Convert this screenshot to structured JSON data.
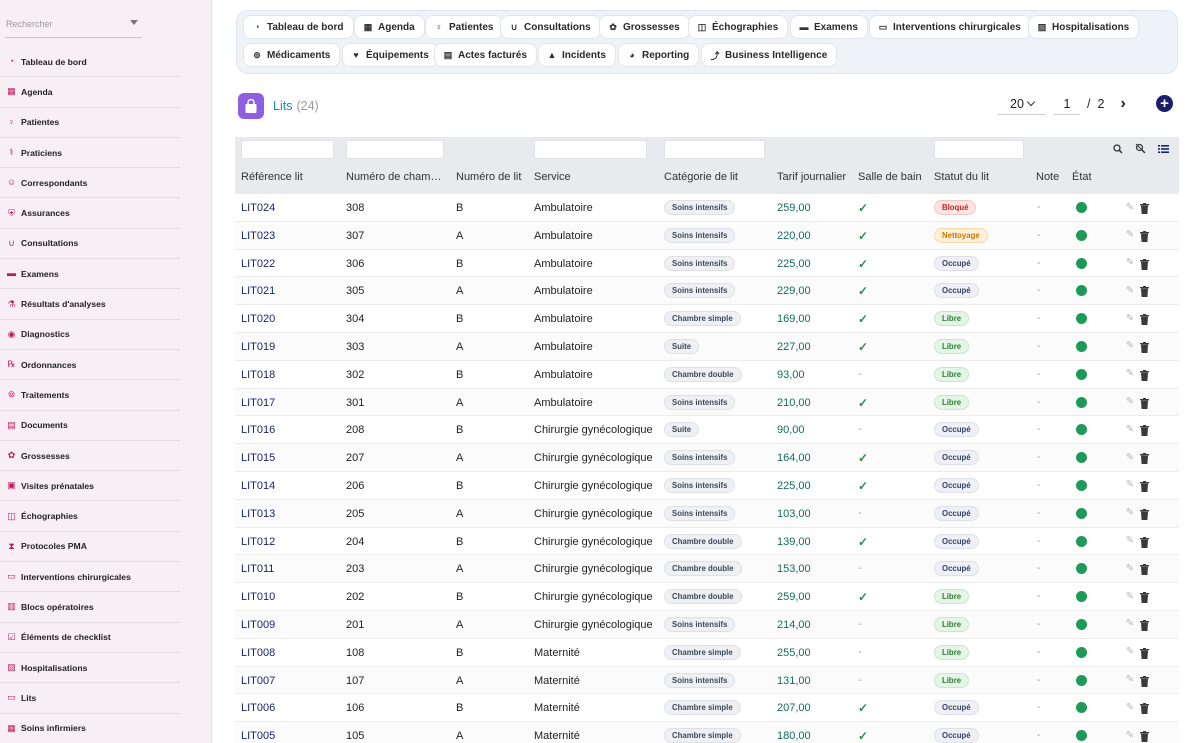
{
  "sidebar": {
    "search_placeholder": "Rechercher",
    "items": [
      {
        "label": "Tableau de bord",
        "icon": "dashboard-icon",
        "glyph": "◔"
      },
      {
        "label": "Agenda",
        "icon": "calendar-icon",
        "glyph": "▦"
      },
      {
        "label": "Patientes",
        "icon": "female-icon",
        "glyph": "♀"
      },
      {
        "label": "Praticiens",
        "icon": "doctor-icon",
        "glyph": "⚕"
      },
      {
        "label": "Correspondants",
        "icon": "contacts-icon",
        "glyph": "☺"
      },
      {
        "label": "Assurances",
        "icon": "shield-icon",
        "glyph": "⛨"
      },
      {
        "label": "Consultations",
        "icon": "stethoscope-icon",
        "glyph": "∪"
      },
      {
        "label": "Examens",
        "icon": "exam-icon",
        "glyph": "▬"
      },
      {
        "label": "Résultats d'analyses",
        "icon": "flask-icon",
        "glyph": "⚗"
      },
      {
        "label": "Diagnostics",
        "icon": "diagnosis-icon",
        "glyph": "◉"
      },
      {
        "label": "Ordonnances",
        "icon": "prescription-icon",
        "glyph": "℞"
      },
      {
        "label": "Traitements",
        "icon": "pills-icon",
        "glyph": "⊚"
      },
      {
        "label": "Documents",
        "icon": "document-icon",
        "glyph": "▤"
      },
      {
        "label": "Grossesses",
        "icon": "pregnancy-icon",
        "glyph": "✿"
      },
      {
        "label": "Visites prénatales",
        "icon": "baby-icon",
        "glyph": "▣"
      },
      {
        "label": "Échographies",
        "icon": "ultrasound-icon",
        "glyph": "◫"
      },
      {
        "label": "Protocoles PMA",
        "icon": "dna-icon",
        "glyph": "⧗"
      },
      {
        "label": "Interventions chirurgicales",
        "icon": "surgery-bed-icon",
        "glyph": "▭"
      },
      {
        "label": "Blocs opératoires",
        "icon": "operating-room-icon",
        "glyph": "▥"
      },
      {
        "label": "Éléments de checklist",
        "icon": "checklist-icon",
        "glyph": "☑"
      },
      {
        "label": "Hospitalisations",
        "icon": "hospital-icon",
        "glyph": "▨"
      },
      {
        "label": "Lits",
        "icon": "bed-icon",
        "glyph": "▭"
      },
      {
        "label": "Soins infirmiers",
        "icon": "nurse-icon",
        "glyph": "▦"
      }
    ]
  },
  "tabs": [
    {
      "label": "Tableau de bord",
      "icon": "dashboard-icon",
      "glyph": "◔"
    },
    {
      "label": "Agenda",
      "icon": "calendar-icon",
      "glyph": "▦"
    },
    {
      "label": "Patientes",
      "icon": "female-icon",
      "glyph": "♀"
    },
    {
      "label": "Consultations",
      "icon": "stethoscope-icon",
      "glyph": "∪"
    },
    {
      "label": "Grossesses",
      "icon": "pregnancy-icon",
      "glyph": "✿"
    },
    {
      "label": "Échographies",
      "icon": "ultrasound-icon",
      "glyph": "◫"
    },
    {
      "label": "Examens",
      "icon": "exam-icon",
      "glyph": "▬"
    },
    {
      "label": "Interventions chirurgicales",
      "icon": "surgery-bed-icon",
      "glyph": "▭"
    },
    {
      "label": "Hospitalisations",
      "icon": "hospital-icon",
      "glyph": "▨"
    },
    {
      "label": "Médicaments",
      "icon": "pills-icon",
      "glyph": "⊚"
    },
    {
      "label": "Équipements",
      "icon": "equipment-icon",
      "glyph": "♥"
    },
    {
      "label": "Actes facturés",
      "icon": "invoice-icon",
      "glyph": "▤"
    },
    {
      "label": "Incidents",
      "icon": "warning-icon",
      "glyph": "▲"
    },
    {
      "label": "Reporting",
      "icon": "pie-chart-icon",
      "glyph": "◕"
    },
    {
      "label": "Business Intelligence",
      "icon": "line-chart-icon",
      "glyph": "⤴"
    }
  ],
  "header": {
    "title": "Lits",
    "count": "(24)",
    "icon": "shopping-bag-icon"
  },
  "pager": {
    "page_size": "20",
    "current_page": "1",
    "separator": "/",
    "total_pages": "2"
  },
  "table": {
    "columns": [
      "Référence lit",
      "Numéro de cham…",
      "Numéro de lit",
      "Service",
      "Catégorie de lit",
      "Tarif journalier",
      "Salle de bain",
      "Statut du lit",
      "Note",
      "État"
    ],
    "rows": [
      {
        "ref": "LIT024",
        "chambre": "308",
        "lit": "B",
        "service": "Ambulatoire",
        "categorie": "Soins intensifs",
        "tarif": "259,00",
        "bain": true,
        "statut": "Bloqué",
        "note": "-"
      },
      {
        "ref": "LIT023",
        "chambre": "307",
        "lit": "A",
        "service": "Ambulatoire",
        "categorie": "Soins intensifs",
        "tarif": "220,00",
        "bain": true,
        "statut": "Nettoyage",
        "note": "-"
      },
      {
        "ref": "LIT022",
        "chambre": "306",
        "lit": "B",
        "service": "Ambulatoire",
        "categorie": "Soins intensifs",
        "tarif": "225,00",
        "bain": true,
        "statut": "Occupé",
        "note": "-"
      },
      {
        "ref": "LIT021",
        "chambre": "305",
        "lit": "A",
        "service": "Ambulatoire",
        "categorie": "Soins intensifs",
        "tarif": "229,00",
        "bain": true,
        "statut": "Occupé",
        "note": "-"
      },
      {
        "ref": "LIT020",
        "chambre": "304",
        "lit": "B",
        "service": "Ambulatoire",
        "categorie": "Chambre simple",
        "tarif": "169,00",
        "bain": true,
        "statut": "Libre",
        "note": "-"
      },
      {
        "ref": "LIT019",
        "chambre": "303",
        "lit": "A",
        "service": "Ambulatoire",
        "categorie": "Suite",
        "tarif": "227,00",
        "bain": true,
        "statut": "Libre",
        "note": "-"
      },
      {
        "ref": "LIT018",
        "chambre": "302",
        "lit": "B",
        "service": "Ambulatoire",
        "categorie": "Chambre double",
        "tarif": "93,00",
        "bain": false,
        "statut": "Libre",
        "note": "-"
      },
      {
        "ref": "LIT017",
        "chambre": "301",
        "lit": "A",
        "service": "Ambulatoire",
        "categorie": "Soins intensifs",
        "tarif": "210,00",
        "bain": true,
        "statut": "Libre",
        "note": "-"
      },
      {
        "ref": "LIT016",
        "chambre": "208",
        "lit": "B",
        "service": "Chirurgie gynécologique",
        "categorie": "Suite",
        "tarif": "90,00",
        "bain": false,
        "statut": "Occupé",
        "note": "-"
      },
      {
        "ref": "LIT015",
        "chambre": "207",
        "lit": "A",
        "service": "Chirurgie gynécologique",
        "categorie": "Soins intensifs",
        "tarif": "164,00",
        "bain": true,
        "statut": "Occupé",
        "note": "-"
      },
      {
        "ref": "LIT014",
        "chambre": "206",
        "lit": "B",
        "service": "Chirurgie gynécologique",
        "categorie": "Soins intensifs",
        "tarif": "225,00",
        "bain": true,
        "statut": "Occupé",
        "note": "-"
      },
      {
        "ref": "LIT013",
        "chambre": "205",
        "lit": "A",
        "service": "Chirurgie gynécologique",
        "categorie": "Soins intensifs",
        "tarif": "103,00",
        "bain": false,
        "statut": "Occupé",
        "note": "-"
      },
      {
        "ref": "LIT012",
        "chambre": "204",
        "lit": "B",
        "service": "Chirurgie gynécologique",
        "categorie": "Chambre double",
        "tarif": "139,00",
        "bain": true,
        "statut": "Occupé",
        "note": "-"
      },
      {
        "ref": "LIT011",
        "chambre": "203",
        "lit": "A",
        "service": "Chirurgie gynécologique",
        "categorie": "Chambre double",
        "tarif": "153,00",
        "bain": false,
        "statut": "Occupé",
        "note": "-"
      },
      {
        "ref": "LIT010",
        "chambre": "202",
        "lit": "B",
        "service": "Chirurgie gynécologique",
        "categorie": "Chambre double",
        "tarif": "259,00",
        "bain": true,
        "statut": "Libre",
        "note": "-"
      },
      {
        "ref": "LIT009",
        "chambre": "201",
        "lit": "A",
        "service": "Chirurgie gynécologique",
        "categorie": "Soins intensifs",
        "tarif": "214,00",
        "bain": false,
        "statut": "Libre",
        "note": "-"
      },
      {
        "ref": "LIT008",
        "chambre": "108",
        "lit": "B",
        "service": "Maternité",
        "categorie": "Chambre simple",
        "tarif": "255,00",
        "bain": false,
        "statut": "Libre",
        "note": "-"
      },
      {
        "ref": "LIT007",
        "chambre": "107",
        "lit": "A",
        "service": "Maternité",
        "categorie": "Soins intensifs",
        "tarif": "131,00",
        "bain": false,
        "statut": "Libre",
        "note": "-"
      },
      {
        "ref": "LIT006",
        "chambre": "106",
        "lit": "B",
        "service": "Maternité",
        "categorie": "Chambre simple",
        "tarif": "207,00",
        "bain": true,
        "statut": "Occupé",
        "note": "-"
      },
      {
        "ref": "LIT005",
        "chambre": "105",
        "lit": "A",
        "service": "Maternité",
        "categorie": "Chambre simple",
        "tarif": "180,00",
        "bain": true,
        "statut": "Occupé",
        "note": "-"
      }
    ]
  },
  "colors": {
    "accent": "#1a8ca0",
    "brand_pink": "#c2185b",
    "add_button": "#1b1f6b",
    "bag_icon": "#8e5fe0",
    "status_dot": "#1e9a58",
    "check": "#2e8b57"
  }
}
